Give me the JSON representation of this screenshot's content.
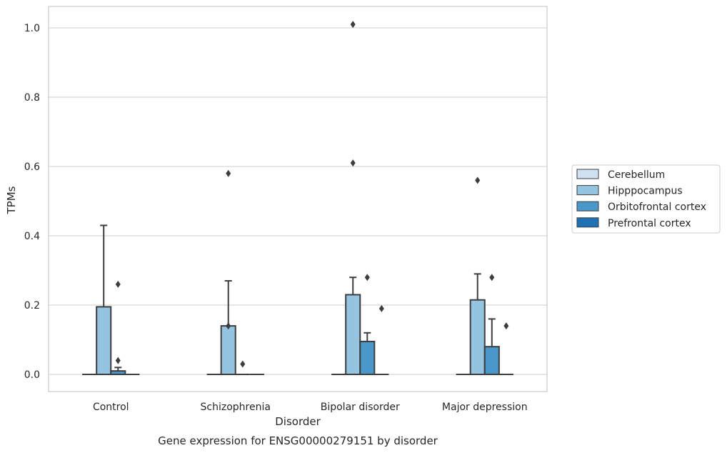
{
  "chart_data": {
    "type": "box",
    "title": "",
    "caption": "Gene expression for ENSG00000279151 by disorder",
    "xlabel": "Disorder",
    "ylabel": "TPMs",
    "ylim": [
      -0.05,
      1.06
    ],
    "yticks": [
      0.0,
      0.2,
      0.4,
      0.6,
      0.8,
      1.0
    ],
    "ytick_labels": [
      "0.0",
      "0.2",
      "0.4",
      "0.6",
      "0.8",
      "1.0"
    ],
    "grid": true,
    "legend_position": "right",
    "categories": [
      "Control",
      "Schizophrenia",
      "Bipolar disorder",
      "Major depression"
    ],
    "series": [
      {
        "name": "Cerebellum",
        "color": "#d0e1f2",
        "boxes": [
          {
            "q1": 0,
            "median": 0,
            "q3": 0,
            "whisker_low": 0,
            "whisker_high": 0,
            "outliers": []
          },
          {
            "q1": 0,
            "median": 0,
            "q3": 0,
            "whisker_low": 0,
            "whisker_high": 0,
            "outliers": []
          },
          {
            "q1": 0,
            "median": 0,
            "q3": 0,
            "whisker_low": 0,
            "whisker_high": 0,
            "outliers": []
          },
          {
            "q1": 0,
            "median": 0,
            "q3": 0,
            "whisker_low": 0,
            "whisker_high": 0,
            "outliers": []
          }
        ]
      },
      {
        "name": "Hipppocampus",
        "color": "#94c4df",
        "boxes": [
          {
            "q1": 0,
            "median": 0,
            "q3": 0.195,
            "whisker_low": 0,
            "whisker_high": 0.43,
            "outliers": []
          },
          {
            "q1": 0,
            "median": 0,
            "q3": 0.14,
            "whisker_low": 0,
            "whisker_high": 0.27,
            "outliers": [
              0.14,
              0.58
            ]
          },
          {
            "q1": 0,
            "median": 0,
            "q3": 0.23,
            "whisker_low": 0,
            "whisker_high": 0.28,
            "outliers": [
              0.61,
              1.01
            ]
          },
          {
            "q1": 0,
            "median": 0,
            "q3": 0.215,
            "whisker_low": 0,
            "whisker_high": 0.29,
            "outliers": [
              0.56
            ]
          }
        ]
      },
      {
        "name": "Orbitofrontal cortex",
        "color": "#4a98c9",
        "boxes": [
          {
            "q1": 0,
            "median": 0,
            "q3": 0.01,
            "whisker_low": 0,
            "whisker_high": 0.02,
            "outliers": [
              0.04,
              0.26
            ]
          },
          {
            "q1": 0,
            "median": 0,
            "q3": 0,
            "whisker_low": 0,
            "whisker_high": 0,
            "outliers": [
              0.03
            ]
          },
          {
            "q1": 0,
            "median": 0,
            "q3": 0.095,
            "whisker_low": 0,
            "whisker_high": 0.12,
            "outliers": [
              0.28
            ]
          },
          {
            "q1": 0,
            "median": 0,
            "q3": 0.08,
            "whisker_low": 0,
            "whisker_high": 0.16,
            "outliers": [
              0.28
            ]
          }
        ]
      },
      {
        "name": "Prefrontal cortex",
        "color": "#2070b4",
        "boxes": [
          {
            "q1": 0,
            "median": 0,
            "q3": 0,
            "whisker_low": 0,
            "whisker_high": 0,
            "outliers": []
          },
          {
            "q1": 0,
            "median": 0,
            "q3": 0,
            "whisker_low": 0,
            "whisker_high": 0,
            "outliers": []
          },
          {
            "q1": 0,
            "median": 0,
            "q3": 0,
            "whisker_low": 0,
            "whisker_high": 0,
            "outliers": [
              0.19
            ]
          },
          {
            "q1": 0,
            "median": 0,
            "q3": 0,
            "whisker_low": 0,
            "whisker_high": 0,
            "outliers": [
              0.14
            ]
          }
        ]
      }
    ]
  }
}
